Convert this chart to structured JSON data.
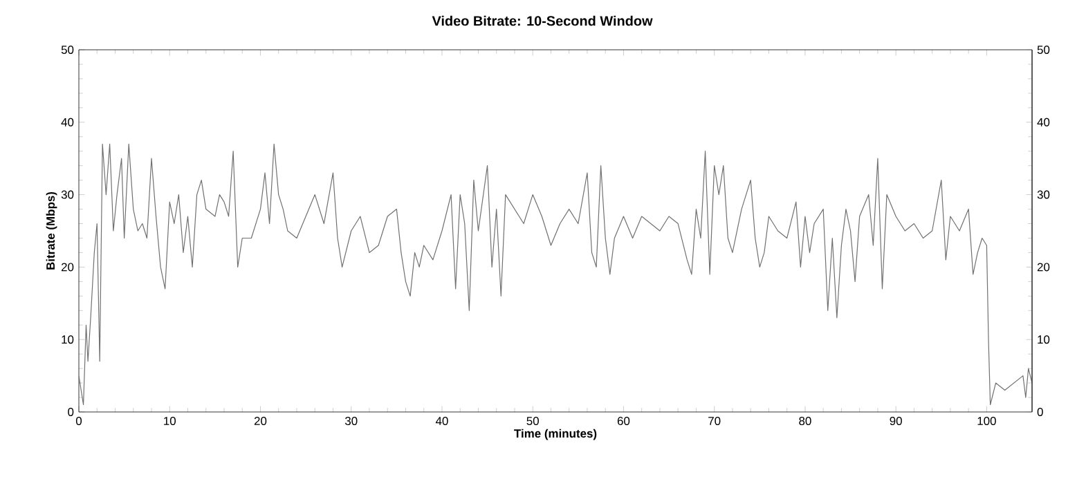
{
  "chart_data": {
    "type": "line",
    "title": "Video Bitrate: 10-Second Window",
    "xlabel": "Time (minutes)",
    "ylabel": "Bitrate (Mbps)",
    "xlim": [
      0,
      105
    ],
    "xticks": [
      0,
      10,
      20,
      30,
      40,
      50,
      60,
      70,
      80,
      90,
      100
    ],
    "ylim": [
      0,
      50
    ],
    "yticks": [
      0,
      10,
      20,
      30,
      40,
      50
    ],
    "y2lim": [
      0,
      50
    ],
    "y2ticks": [
      0,
      10,
      20,
      30,
      40,
      50
    ],
    "grid": false,
    "legend": false,
    "marker": "none",
    "line_style": "solid",
    "series": [
      {
        "color": "#707070",
        "x": [
          0,
          0.5,
          0.8,
          1,
          1.3,
          1.7,
          2,
          2.3,
          2.6,
          3,
          3.4,
          3.8,
          4.2,
          4.7,
          5,
          5.5,
          6,
          6.5,
          7,
          7.5,
          8,
          8.5,
          9,
          9.5,
          10,
          10.5,
          11,
          11.5,
          12,
          12.5,
          13,
          13.5,
          14,
          15,
          15.5,
          16,
          16.5,
          17,
          17.5,
          18,
          19,
          20,
          20.5,
          21,
          21.5,
          22,
          22.5,
          23,
          24,
          25,
          26,
          27,
          28,
          28.5,
          29,
          30,
          31,
          32,
          33,
          34,
          35,
          35.5,
          36,
          36.5,
          37,
          37.5,
          38,
          39,
          40,
          41,
          41.5,
          42,
          42.5,
          43,
          43.5,
          44,
          45,
          45.5,
          46,
          46.5,
          47,
          48,
          49,
          50,
          51,
          52,
          53,
          54,
          55,
          56,
          56.5,
          57,
          57.5,
          58,
          58.5,
          59,
          60,
          61,
          62,
          63,
          64,
          65,
          66,
          67,
          67.5,
          68,
          68.5,
          69,
          69.5,
          70,
          70.5,
          71,
          71.5,
          72,
          73,
          74,
          74.5,
          75,
          75.5,
          76,
          77,
          78,
          79,
          79.5,
          80,
          80.5,
          81,
          82,
          82.5,
          83,
          83.5,
          84,
          84.5,
          85,
          85.5,
          86,
          87,
          87.5,
          88,
          88.5,
          89,
          90,
          91,
          92,
          93,
          94,
          95,
          95.5,
          96,
          97,
          98,
          98.5,
          99,
          99.5,
          100,
          100.2,
          100.4,
          101,
          102,
          103,
          104,
          104.3,
          104.6,
          105
        ],
        "values": [
          5,
          1,
          12,
          7,
          13,
          22,
          26,
          7,
          37,
          30,
          37,
          25,
          30,
          35,
          24,
          37,
          28,
          25,
          26,
          24,
          35,
          27,
          20,
          17,
          29,
          26,
          30,
          22,
          27,
          20,
          30,
          32,
          28,
          27,
          30,
          29,
          27,
          36,
          20,
          24,
          24,
          28,
          33,
          26,
          37,
          30,
          28,
          25,
          24,
          27,
          30,
          26,
          33,
          24,
          20,
          25,
          27,
          22,
          23,
          27,
          28,
          22,
          18,
          16,
          22,
          20,
          23,
          21,
          25,
          30,
          17,
          30,
          26,
          14,
          32,
          25,
          34,
          20,
          28,
          16,
          30,
          28,
          26,
          30,
          27,
          23,
          26,
          28,
          26,
          33,
          22,
          20,
          34,
          24,
          19,
          24,
          27,
          24,
          27,
          26,
          25,
          27,
          26,
          21,
          19,
          28,
          24,
          36,
          19,
          34,
          30,
          34,
          24,
          22,
          28,
          32,
          24,
          20,
          22,
          27,
          25,
          24,
          29,
          20,
          27,
          22,
          26,
          28,
          14,
          24,
          13,
          23,
          28,
          25,
          18,
          27,
          30,
          23,
          35,
          17,
          30,
          27,
          25,
          26,
          24,
          25,
          32,
          21,
          27,
          25,
          28,
          19,
          22,
          24,
          23,
          10,
          1,
          4,
          3,
          4,
          5,
          2,
          6,
          4
        ]
      }
    ]
  }
}
